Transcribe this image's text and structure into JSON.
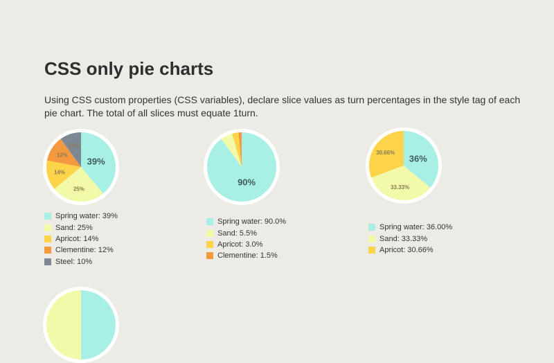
{
  "page": {
    "title": "CSS only pie charts",
    "description": "Using CSS custom properties (CSS variables), declare slice values as turn percentages in the style tag of each pie chart. The total of all slices must equate 1turn."
  },
  "colors": {
    "spring_water": "#a8f0e6",
    "sand": "#f2f9a9",
    "apricot": "#fcd349",
    "clementine": "#f49940",
    "steel": "#7c8994",
    "ring": "#ffffff"
  },
  "chart_data": [
    {
      "type": "pie",
      "slices": [
        {
          "name": "Spring water",
          "value": 39,
          "label": "39%",
          "legend": "Spring water: 39%",
          "color": "#a8f0e6"
        },
        {
          "name": "Sand",
          "value": 25,
          "label": "25%",
          "legend": "Sand: 25%",
          "color": "#f2f9a9"
        },
        {
          "name": "Apricot",
          "value": 14,
          "label": "14%",
          "legend": "Apricot: 14%",
          "color": "#fcd349"
        },
        {
          "name": "Clementine",
          "value": 12,
          "label": "12%",
          "legend": "Clementine: 12%",
          "color": "#f49940"
        },
        {
          "name": "Steel",
          "value": 10,
          "label": "10%",
          "legend": "Steel: 10%",
          "color": "#7c8994"
        }
      ]
    },
    {
      "type": "pie",
      "slices": [
        {
          "name": "Spring water",
          "value": 90.0,
          "label": "90%",
          "legend": "Spring water: 90.0%",
          "color": "#a8f0e6"
        },
        {
          "name": "Sand",
          "value": 5.5,
          "label": "",
          "legend": "Sand: 5.5%",
          "color": "#f2f9a9"
        },
        {
          "name": "Apricot",
          "value": 3.0,
          "label": "",
          "legend": "Apricot: 3.0%",
          "color": "#fcd349"
        },
        {
          "name": "Clementine",
          "value": 1.5,
          "label": "",
          "legend": "Clementine: 1.5%",
          "color": "#f49940"
        }
      ]
    },
    {
      "type": "pie",
      "slices": [
        {
          "name": "Spring water",
          "value": 36.0,
          "label": "36%",
          "legend": "Spring water: 36.00%",
          "color": "#a8f0e6"
        },
        {
          "name": "Sand",
          "value": 33.33,
          "label": "33.33%",
          "legend": "Sand: 33.33%",
          "color": "#f2f9a9"
        },
        {
          "name": "Apricot",
          "value": 30.66,
          "label": "30.66%",
          "legend": "Apricot: 30.66%",
          "color": "#fcd349"
        }
      ]
    },
    {
      "type": "pie",
      "slices": [
        {
          "name": "Spring water",
          "value": 50,
          "label": "",
          "color": "#a8f0e6"
        },
        {
          "name": "Sand",
          "value": 50,
          "label": "",
          "color": "#f2f9a9"
        }
      ]
    }
  ]
}
